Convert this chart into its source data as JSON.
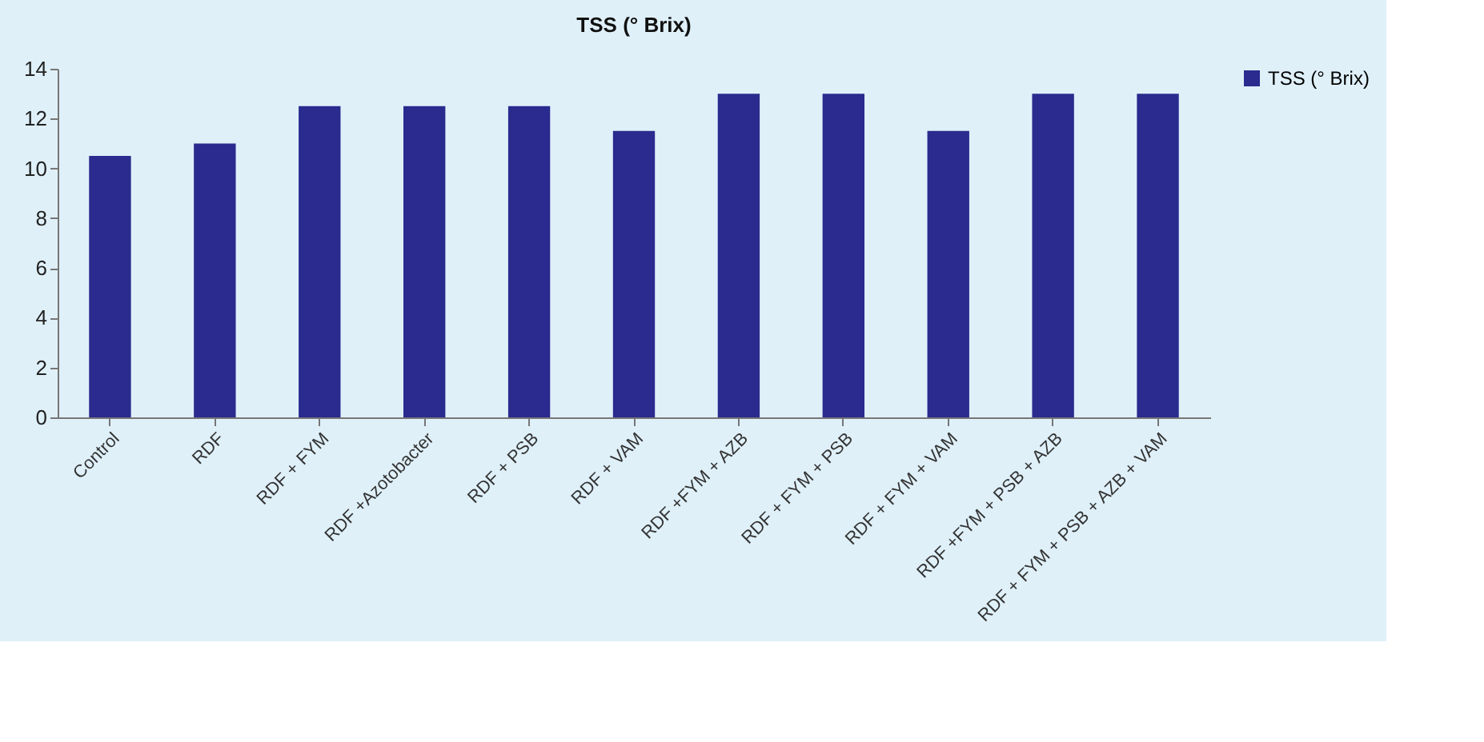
{
  "chart_data": {
    "type": "bar",
    "title": "TSS (° Brix)",
    "categories": [
      "Control",
      "RDF",
      "RDF + FYM",
      "RDF +Azotobacter",
      "RDF + PSB",
      "RDF + VAM",
      "RDF +FYM + AZB",
      "RDF + FYM + PSB",
      "RDF + FYM + VAM",
      "RDF +FYM + PSB + AZB",
      "RDF + FYM + PSB + AZB + VAM"
    ],
    "series": [
      {
        "name": "TSS (° Brix)",
        "color": "#2b2a8e",
        "values": [
          10.5,
          11,
          12.5,
          12.5,
          12.5,
          11.5,
          13,
          13,
          11.5,
          13,
          13
        ]
      }
    ],
    "ylim": [
      0,
      14
    ],
    "yticks": [
      0,
      2,
      4,
      6,
      8,
      10,
      12,
      14
    ],
    "grid": false,
    "legend": "right"
  }
}
